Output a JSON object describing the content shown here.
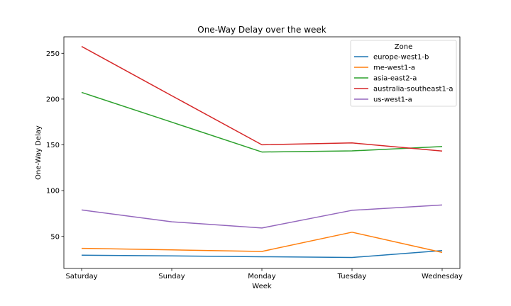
{
  "chart_data": {
    "type": "line",
    "title": "One-Way Delay over the week",
    "xlabel": "Week",
    "ylabel": "One-Way Delay",
    "categories": [
      "Saturday",
      "Sunday",
      "Monday",
      "Tuesday",
      "Wednesday"
    ],
    "ylim": [
      15,
      268
    ],
    "yticks": [
      50,
      100,
      150,
      200,
      250
    ],
    "grid": false,
    "legend": {
      "title": "Zone",
      "placement": "top-right"
    },
    "series": [
      {
        "name": "europe-west1-b",
        "color": "#1f77b4",
        "values": [
          29.5,
          28.7,
          27.8,
          27.0,
          34.5
        ]
      },
      {
        "name": "me-west1-a",
        "color": "#ff7f0e",
        "values": [
          37.0,
          35.3,
          33.6,
          54.6,
          32.5
        ]
      },
      {
        "name": "asia-east2-a",
        "color": "#2ca02c",
        "values": [
          207.3,
          174.8,
          142.2,
          143.4,
          148.2
        ]
      },
      {
        "name": "australia-southeast1-a",
        "color": "#d62728",
        "values": [
          257.5,
          203.7,
          150.1,
          152.1,
          143.2
        ]
      },
      {
        "name": "us-west1-a",
        "color": "#9467bd",
        "values": [
          78.9,
          66.0,
          59.2,
          78.5,
          84.3
        ]
      }
    ]
  }
}
